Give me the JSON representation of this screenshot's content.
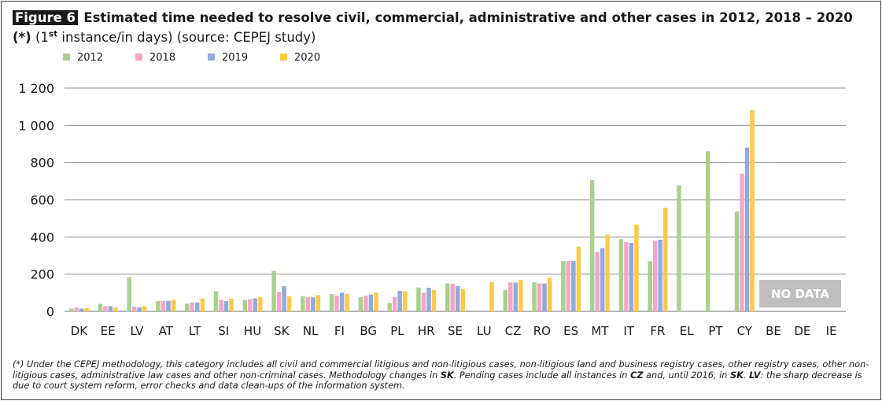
{
  "figure": {
    "label": "Figure 6",
    "title_bold": "Estimated time needed to resolve civil, commercial, administrative and other cases in 2012, 2018 – 2020 (*)",
    "title_pre": "(1",
    "title_sup": "st",
    "title_post": " instance/in days) (source: CEPEJ study)"
  },
  "footnote": [
    {
      "t": "(*) Under the CEPEJ methodology, this category includes all civil and commercial litigious and non-litigious cases, non-litigious land and business registry cases, other registry cases, other non-litigious cases, administrative law cases and other non-criminal cases. Methodology changes in "
    },
    {
      "t": "SK",
      "b": true
    },
    {
      "t": ". Pending cases include all instances in "
    },
    {
      "t": "CZ",
      "b": true
    },
    {
      "t": " and, until 2016, in "
    },
    {
      "t": "SK",
      "b": true
    },
    {
      "t": ". "
    },
    {
      "t": "LV",
      "b": true
    },
    {
      "t": ": the sharp decrease is due to court system reform, error checks and data clean-ups of the information system."
    }
  ],
  "colors": {
    "2012": "#a9d18e",
    "2018": "#f4a6c8",
    "2019": "#8faadc",
    "2020": "#ffc947",
    "grid": "#8c8c8c",
    "no_data_bg": "#bfbfbf",
    "no_data_text": "#ffffff"
  },
  "chart_data": {
    "type": "bar",
    "categories": [
      "DK",
      "EE",
      "LV",
      "AT",
      "LT",
      "SI",
      "HU",
      "SK",
      "NL",
      "FI",
      "BG",
      "PL",
      "HR",
      "SE",
      "LU",
      "CZ",
      "RO",
      "ES",
      "MT",
      "IT",
      "FR",
      "EL",
      "PT",
      "CY",
      "BE",
      "DE",
      "IE"
    ],
    "series": [
      {
        "name": "2012",
        "values": [
          15,
          40,
          184,
          55,
          42,
          108,
          61,
          218,
          82,
          93,
          76,
          46,
          128,
          150,
          null,
          115,
          156,
          270,
          705,
          388,
          270,
          677,
          861,
          536,
          null,
          null,
          null
        ]
      },
      {
        "name": "2018",
        "values": [
          20,
          28,
          25,
          56,
          48,
          62,
          66,
          105,
          76,
          85,
          85,
          77,
          100,
          148,
          null,
          155,
          150,
          270,
          320,
          373,
          380,
          null,
          null,
          740,
          null,
          null,
          null
        ]
      },
      {
        "name": "2019",
        "values": [
          15,
          28,
          22,
          56,
          48,
          55,
          70,
          135,
          75,
          100,
          90,
          110,
          127,
          135,
          null,
          155,
          150,
          270,
          340,
          368,
          385,
          null,
          null,
          880,
          null,
          null,
          null
        ]
      },
      {
        "name": "2020",
        "values": [
          17,
          22,
          28,
          62,
          68,
          68,
          76,
          82,
          88,
          93,
          100,
          108,
          115,
          120,
          157,
          168,
          182,
          348,
          413,
          466,
          557,
          null,
          null,
          1082,
          null,
          null,
          null
        ]
      }
    ],
    "ylim": [
      0,
      1200
    ],
    "yticks": [
      0,
      200,
      400,
      600,
      800,
      1000,
      1200
    ],
    "ytick_labels": [
      "0",
      "200",
      "400",
      "600",
      "800",
      "1 000",
      "1 200"
    ],
    "grid": true,
    "legend_position": "top-left",
    "annotation": {
      "text": "NO DATA",
      "over_categories": [
        "BE",
        "DE",
        "IE"
      ]
    }
  }
}
